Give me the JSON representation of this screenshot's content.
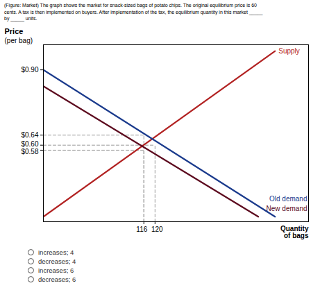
{
  "chart_data": {
    "type": "line",
    "title": "(Figure: Market) The graph shows the market for snack-sized bags of potato chips. The original equilibrium price is 60\ncents. A tax is then implemented on buyers. After implementation of the tax, the equilibrium quantity in this market _____\nby _____ units.",
    "xlabel": "Quantity\nof bags",
    "ylabel": "Price\n(per bag)",
    "xlim": [
      80,
      175
    ],
    "ylim": [
      0.295,
      1.0
    ],
    "xticks": [
      116,
      120
    ],
    "yticks": [
      {
        "value": 0.58,
        "label": "$0.58"
      },
      {
        "value": 0.6,
        "label": "$0.60"
      },
      {
        "value": 0.64,
        "label": "$0.64"
      },
      {
        "value": 0.9,
        "label": "$0.90"
      }
    ],
    "grid": false,
    "series": [
      {
        "name": "Supply",
        "color": "#b22222",
        "x": [
          80,
          163
        ],
        "values": [
          0.315,
          0.975
        ]
      },
      {
        "name": "Old demand",
        "color": "#1a3a8c",
        "x": [
          80,
          163
        ],
        "values": [
          0.9,
          0.315
        ]
      },
      {
        "name": "New demand",
        "color": "#5c0a1e",
        "x": [
          80,
          157
        ],
        "values": [
          0.835,
          0.315
        ]
      }
    ],
    "guides": {
      "color": "#999999",
      "line_style": "dashed",
      "points": [
        {
          "x": 120,
          "y": 0.6
        },
        {
          "x": 116,
          "y": 0.64
        },
        {
          "x": 116,
          "y": 0.58
        }
      ]
    },
    "annotations": [
      "increases; 4",
      "decreases; 4",
      "increases; 6",
      "decreases; 6"
    ]
  }
}
